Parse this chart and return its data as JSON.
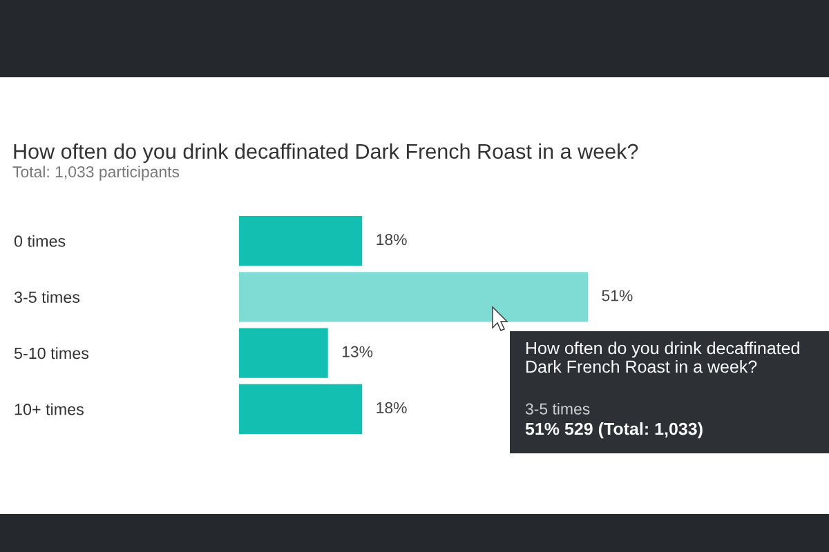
{
  "chart_data": {
    "type": "bar",
    "orientation": "horizontal",
    "title": "How often do you drink decaffinated Dark French Roast in a week?",
    "subtitle": "Total: 1,033 participants",
    "categories": [
      "0 times",
      "3-5 times",
      "5-10 times",
      "10+ times"
    ],
    "values": [
      18,
      51,
      13,
      18
    ],
    "colors": [
      "#13bfb0",
      "#7fdcd5",
      "#13bfb0",
      "#13bfb0"
    ],
    "value_labels": [
      "18%",
      "51%",
      "13%",
      "18%"
    ],
    "tick_labels": "y",
    "grid": false,
    "annotations": [
      "How often do you drink decaffinated Dark French Roast in a week?",
      "3-5 times",
      "51% 529 (Total: 1,033)"
    ]
  }
}
